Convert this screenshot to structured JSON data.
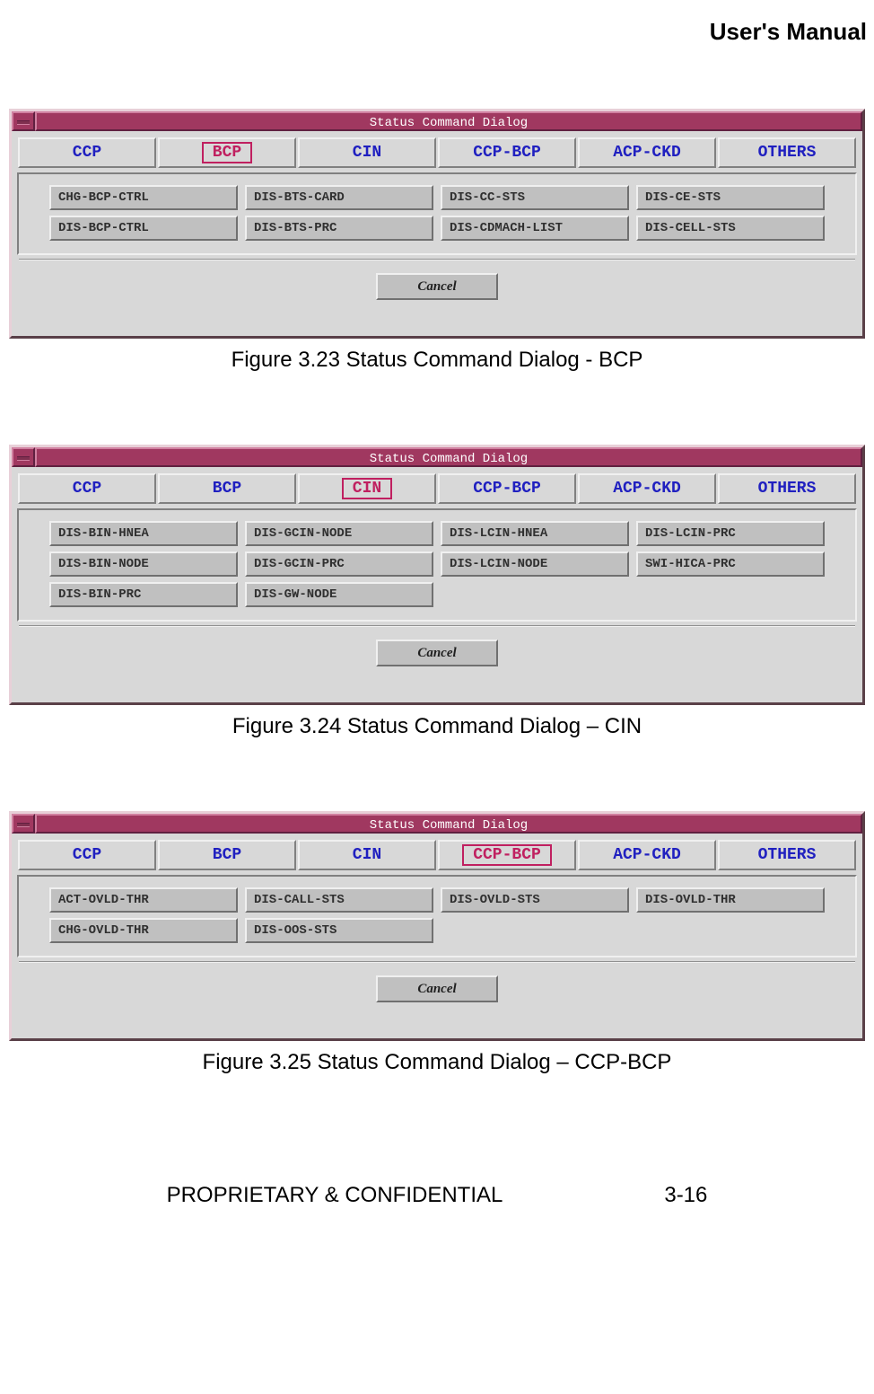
{
  "header": {
    "title": "User's Manual"
  },
  "dialogs": [
    {
      "title": "Status Command Dialog",
      "tabs": [
        "CCP",
        "BCP",
        "CIN",
        "CCP-BCP",
        "ACP-CKD",
        "OTHERS"
      ],
      "selected": "BCP",
      "commands": [
        "CHG-BCP-CTRL",
        "DIS-BTS-CARD",
        "DIS-CC-STS",
        "DIS-CE-STS",
        "DIS-BCP-CTRL",
        "DIS-BTS-PRC",
        "DIS-CDMACH-LIST",
        "DIS-CELL-STS"
      ],
      "cancel": "Cancel",
      "caption": "Figure 3.23 Status Command Dialog - BCP"
    },
    {
      "title": "Status Command Dialog",
      "tabs": [
        "CCP",
        "BCP",
        "CIN",
        "CCP-BCP",
        "ACP-CKD",
        "OTHERS"
      ],
      "selected": "CIN",
      "commands": [
        "DIS-BIN-HNEA",
        "DIS-GCIN-NODE",
        "DIS-LCIN-HNEA",
        "DIS-LCIN-PRC",
        "DIS-BIN-NODE",
        "DIS-GCIN-PRC",
        "DIS-LCIN-NODE",
        "SWI-HICA-PRC",
        "DIS-BIN-PRC",
        "DIS-GW-NODE"
      ],
      "cancel": "Cancel",
      "caption": "Figure 3.24 Status Command Dialog – CIN"
    },
    {
      "title": "Status Command Dialog",
      "tabs": [
        "CCP",
        "BCP",
        "CIN",
        "CCP-BCP",
        "ACP-CKD",
        "OTHERS"
      ],
      "selected": "CCP-BCP",
      "commands": [
        "ACT-OVLD-THR",
        "DIS-CALL-STS",
        "DIS-OVLD-STS",
        "DIS-OVLD-THR",
        "CHG-OVLD-THR",
        "DIS-OOS-STS"
      ],
      "cancel": "Cancel",
      "caption": "Figure 3.25 Status Command Dialog – CCP-BCP"
    }
  ],
  "footer": {
    "left": "PROPRIETARY & CONFIDENTIAL",
    "right": "3-16"
  },
  "colors": {
    "titlebar_bg": "#a03860",
    "tab_text": "#2020c0",
    "selected_border": "#c02060",
    "panel_bg": "#d8d8d8",
    "button_bg": "#c0c0c0"
  }
}
